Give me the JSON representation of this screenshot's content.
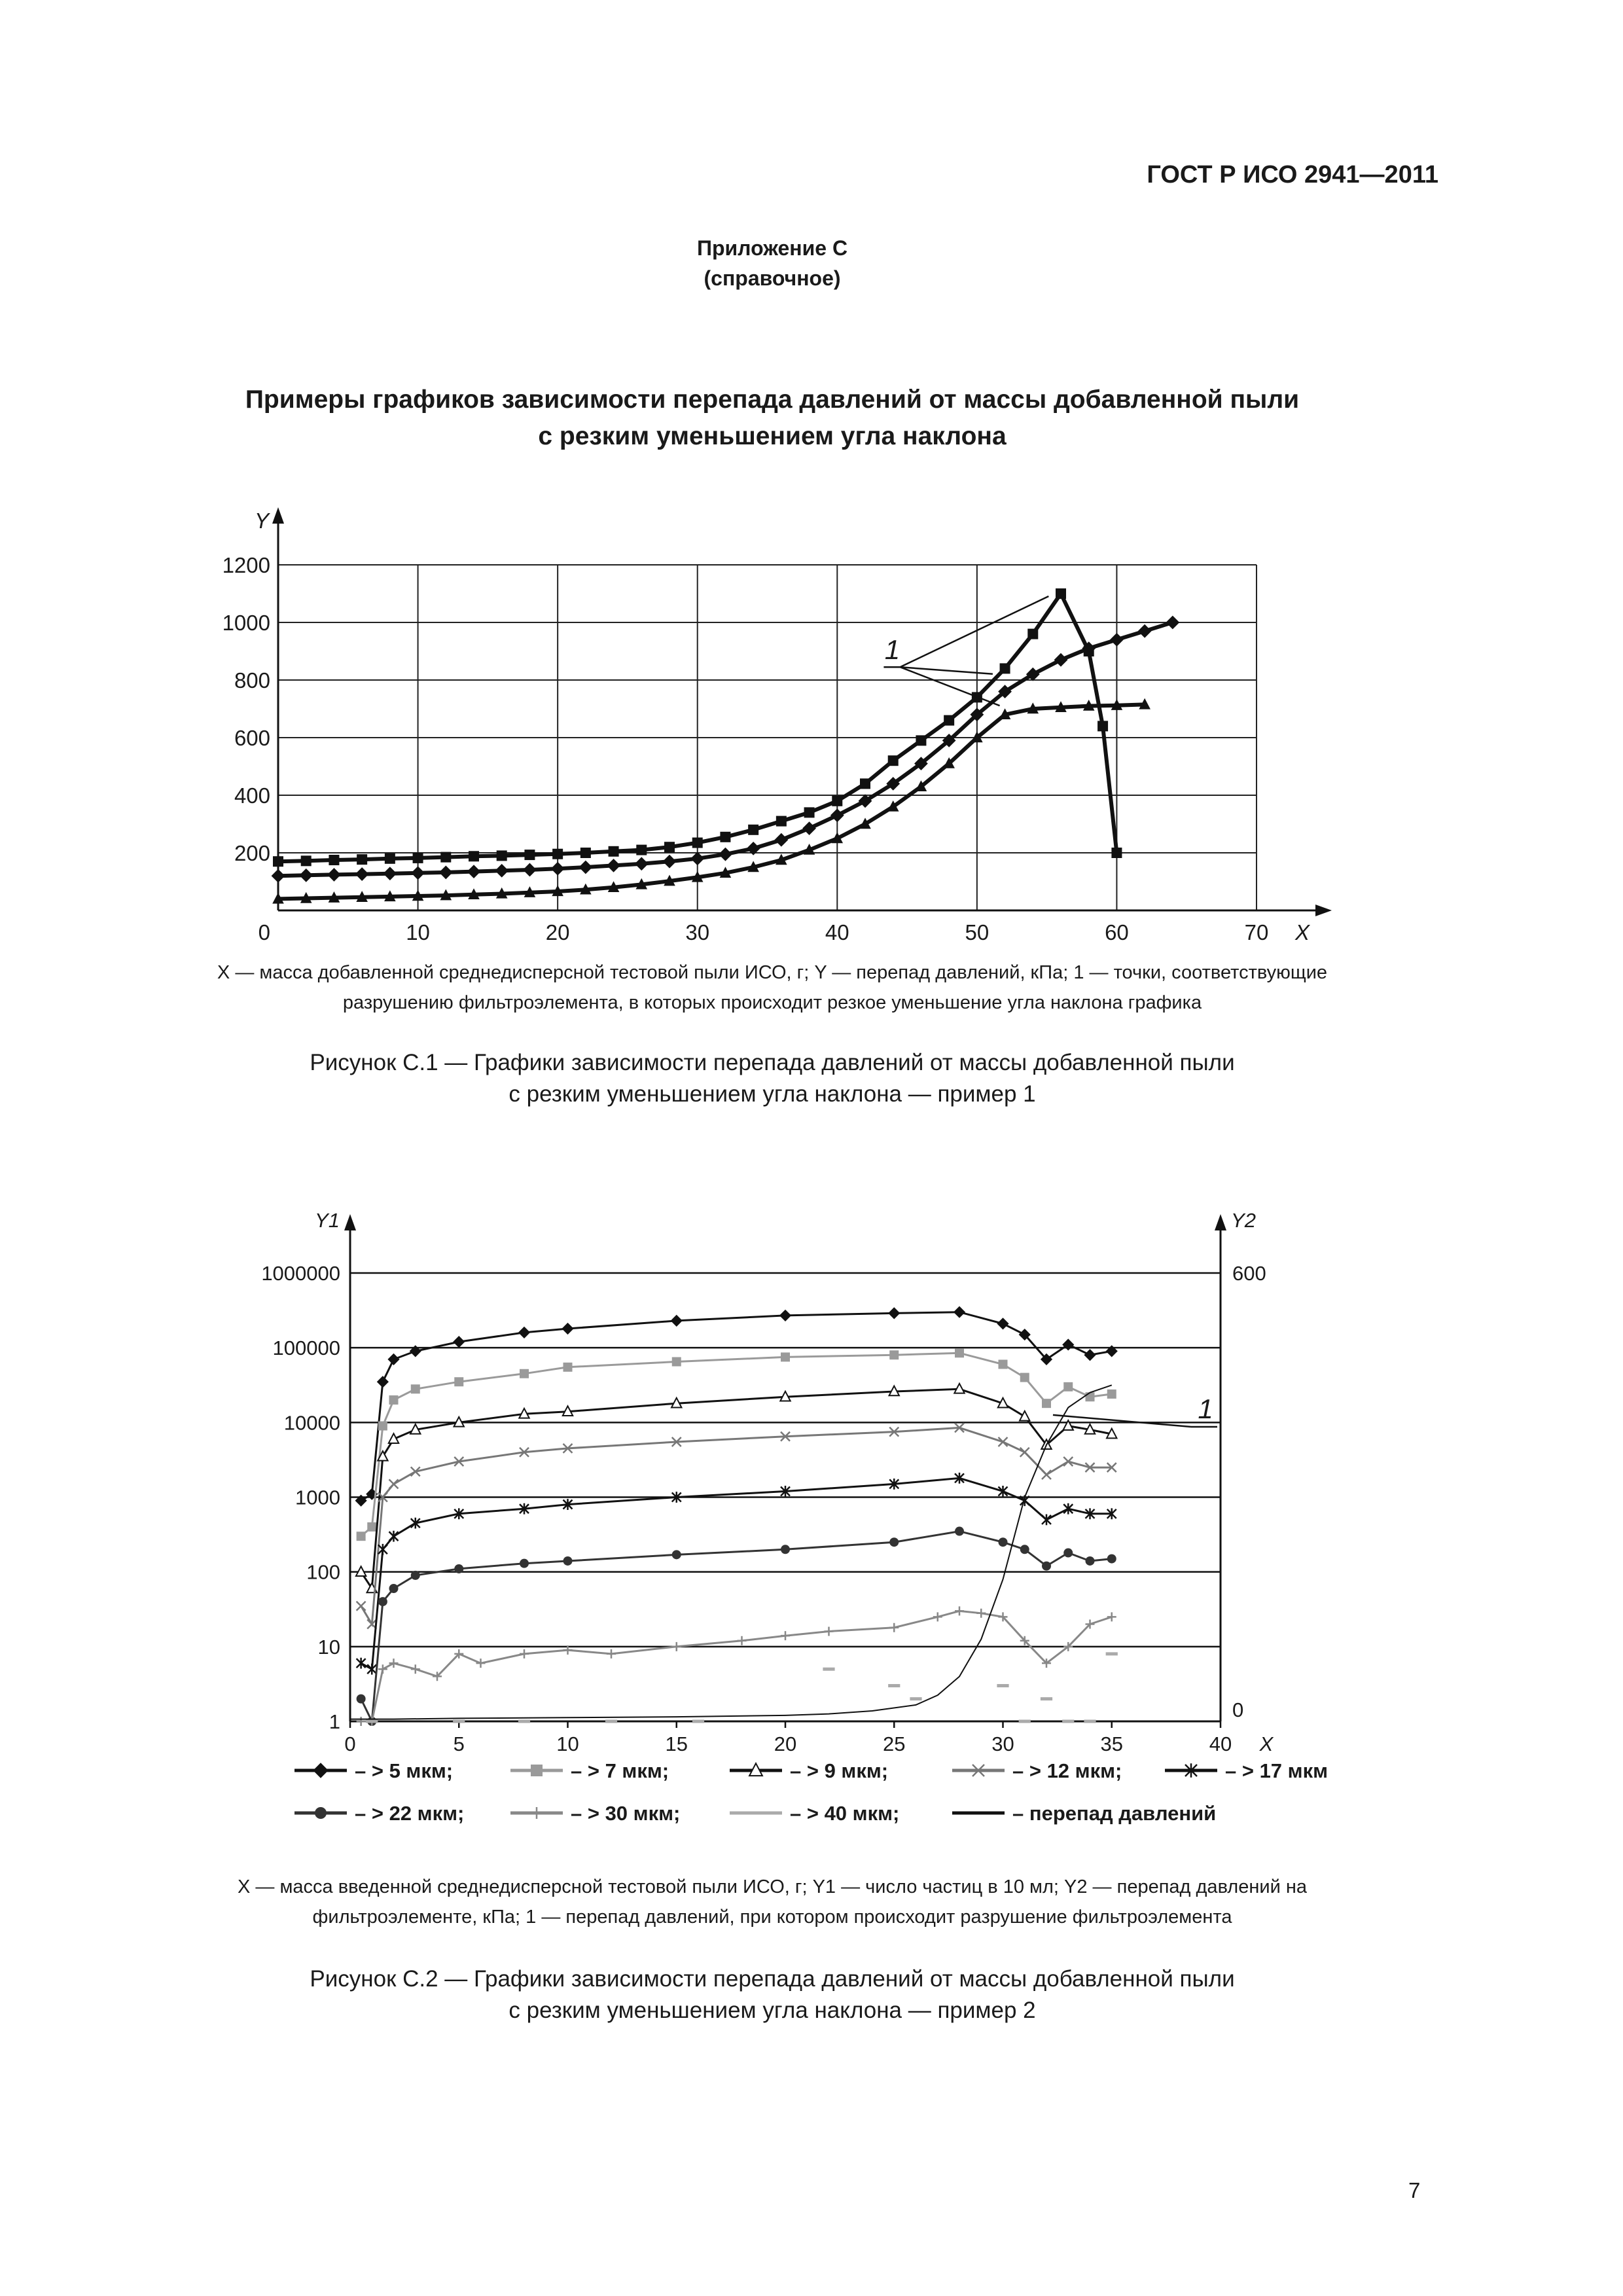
{
  "header": {
    "standard": "ГОСТ Р ИСО 2941—2011"
  },
  "annex": {
    "line1": "Приложение С",
    "line2": "(справочное)"
  },
  "title": {
    "line1": "Примеры графиков зависимости перепада давлений от массы добавленной пыли",
    "line2": "с резким уменьшением угла наклона"
  },
  "figure1": {
    "legend_line1": "X — масса добавленной среднедисперсной тестовой пыли ИСО, г; Y — перепад давлений, кПа; 1 — точки, соответствующие",
    "legend_line2": "разрушению фильтроэлемента, в которых происходит резкое уменьшение угла наклона графика",
    "caption_line1": "Рисунок С.1 — Графики зависимости перепада давлений от массы добавленной пыли",
    "caption_line2": "с резким уменьшением угла наклона — пример 1"
  },
  "figure2": {
    "legend_line1": "X — масса введенной среднедисперсной тестовой пыли ИСО, г; Y1 — число частиц в 10 мл; Y2 — перепад давлений на",
    "legend_line2": "фильтроэлементе, кПа; 1 — перепад давлений, при котором происходит разрушение фильтроэлемента",
    "caption_line1": "Рисунок С.2 — Графики зависимости перепада давлений от массы добавленной пыли",
    "caption_line2": "с резким уменьшением угла наклона — пример 2"
  },
  "page_number": "7",
  "chart_data": [
    {
      "type": "line",
      "xlabel": "X",
      "ylabel": "Y",
      "xlim": [
        0,
        70
      ],
      "ylim": [
        0,
        1200
      ],
      "xticks": [
        "0",
        "10",
        "20",
        "30",
        "40",
        "50",
        "60",
        "70"
      ],
      "yticks": [
        "200",
        "400",
        "600",
        "800",
        "1000",
        "1200"
      ],
      "annotation": "1",
      "grid": true,
      "series": [
        {
          "marker": "square",
          "x": [
            0,
            2,
            4,
            6,
            8,
            10,
            12,
            14,
            16,
            18,
            20,
            22,
            24,
            26,
            28,
            30,
            32,
            34,
            36,
            38,
            40,
            42,
            44,
            46,
            48,
            50,
            52,
            54,
            56,
            58,
            59,
            60
          ],
          "y": [
            170,
            172,
            175,
            177,
            180,
            182,
            185,
            188,
            190,
            193,
            196,
            200,
            205,
            210,
            220,
            235,
            255,
            280,
            310,
            340,
            380,
            440,
            520,
            590,
            660,
            740,
            840,
            960,
            1100,
            900,
            640,
            200
          ]
        },
        {
          "marker": "diamond",
          "x": [
            0,
            2,
            4,
            6,
            8,
            10,
            12,
            14,
            16,
            18,
            20,
            22,
            24,
            26,
            28,
            30,
            32,
            34,
            36,
            38,
            40,
            42,
            44,
            46,
            48,
            50,
            52,
            54,
            56,
            58,
            60,
            62,
            64
          ],
          "y": [
            120,
            122,
            124,
            126,
            128,
            130,
            132,
            135,
            138,
            141,
            145,
            150,
            156,
            162,
            170,
            180,
            195,
            215,
            245,
            285,
            330,
            380,
            440,
            510,
            590,
            680,
            760,
            820,
            870,
            910,
            940,
            970,
            1000
          ]
        },
        {
          "marker": "triangle",
          "x": [
            0,
            2,
            4,
            6,
            8,
            10,
            12,
            14,
            16,
            18,
            20,
            22,
            24,
            26,
            28,
            30,
            32,
            34,
            36,
            38,
            40,
            42,
            44,
            46,
            48,
            50,
            52,
            54,
            56,
            58,
            60,
            62
          ],
          "y": [
            40,
            42,
            44,
            46,
            48,
            50,
            52,
            55,
            58,
            62,
            66,
            72,
            80,
            90,
            102,
            115,
            130,
            150,
            175,
            210,
            250,
            300,
            360,
            430,
            510,
            600,
            680,
            700,
            705,
            710,
            712,
            715
          ]
        }
      ]
    },
    {
      "type": "line",
      "xlabel": "X",
      "ylabel": "Y1",
      "y2label": "Y2",
      "y_scale": "log",
      "xlim": [
        0,
        40
      ],
      "ylim": [
        1,
        1000000
      ],
      "y2lim": [
        0,
        600
      ],
      "xticks": [
        "0",
        "5",
        "10",
        "15",
        "20",
        "25",
        "30",
        "35",
        "40"
      ],
      "yticks": [
        "1",
        "10",
        "100",
        "1000",
        "10000",
        "100000",
        "1000000"
      ],
      "y2ticks": [
        "0",
        "600"
      ],
      "annotation": "1",
      "legend_position": "bottom",
      "series": [
        {
          "name": "– > 5 мкм;",
          "marker": "diamond",
          "color": "#111111",
          "x": [
            0.5,
            1,
            1.5,
            2,
            3,
            5,
            8,
            10,
            15,
            20,
            25,
            28,
            30,
            31,
            32,
            33,
            34,
            35
          ],
          "y": [
            900,
            1100,
            35000,
            70000,
            90000,
            120000,
            160000,
            180000,
            230000,
            270000,
            290000,
            300000,
            210000,
            150000,
            70000,
            110000,
            80000,
            90000
          ]
        },
        {
          "name": "– > 7 мкм;",
          "marker": "square",
          "color": "#9a9a9a",
          "x": [
            0.5,
            1,
            1.5,
            2,
            3,
            5,
            8,
            10,
            15,
            20,
            25,
            28,
            30,
            31,
            32,
            33,
            34,
            35
          ],
          "y": [
            300,
            400,
            9000,
            20000,
            28000,
            35000,
            45000,
            55000,
            65000,
            75000,
            80000,
            85000,
            60000,
            40000,
            18000,
            30000,
            22000,
            24000
          ]
        },
        {
          "name": "– > 9 мкм;",
          "marker": "triangle-open",
          "color": "#111111",
          "x": [
            0.5,
            1,
            1.5,
            2,
            3,
            5,
            8,
            10,
            15,
            20,
            25,
            28,
            30,
            31,
            32,
            33,
            34,
            35
          ],
          "y": [
            100,
            60,
            3500,
            6000,
            8000,
            10000,
            13000,
            14000,
            18000,
            22000,
            26000,
            28000,
            18000,
            12000,
            5000,
            9000,
            8000,
            7000
          ]
        },
        {
          "name": "– > 12 мкм;",
          "marker": "x",
          "color": "#777777",
          "x": [
            0.5,
            1,
            1.5,
            2,
            3,
            5,
            8,
            10,
            15,
            20,
            25,
            28,
            30,
            31,
            32,
            33,
            34,
            35
          ],
          "y": [
            35,
            20,
            1000,
            1500,
            2200,
            3000,
            4000,
            4500,
            5500,
            6500,
            7500,
            8500,
            5500,
            4000,
            2000,
            3000,
            2500,
            2500
          ]
        },
        {
          "name": "– > 17 мкм;",
          "marker": "asterisk",
          "color": "#111111",
          "x": [
            0.5,
            1,
            1.5,
            2,
            3,
            5,
            8,
            10,
            15,
            20,
            25,
            28,
            30,
            31,
            32,
            33,
            34,
            35
          ],
          "y": [
            6,
            5,
            200,
            300,
            450,
            600,
            700,
            800,
            1000,
            1200,
            1500,
            1800,
            1200,
            900,
            500,
            700,
            600,
            600
          ]
        },
        {
          "name": "– > 22 мкм;",
          "marker": "circle",
          "color": "#333333",
          "x": [
            0.5,
            1,
            1.5,
            2,
            3,
            5,
            8,
            10,
            15,
            20,
            25,
            28,
            30,
            31,
            32,
            33,
            34,
            35
          ],
          "y": [
            2,
            1,
            40,
            60,
            90,
            110,
            130,
            140,
            170,
            200,
            250,
            350,
            250,
            200,
            120,
            180,
            140,
            150
          ]
        },
        {
          "name": "– > 30 мкм;",
          "marker": "plus",
          "color": "#888888",
          "x": [
            0.5,
            1,
            1.5,
            2,
            3,
            4,
            5,
            6,
            8,
            10,
            12,
            15,
            18,
            20,
            22,
            25,
            27,
            28,
            29,
            30,
            31,
            32,
            33,
            34,
            35
          ],
          "y": [
            1,
            1,
            5,
            6,
            5,
            4,
            8,
            6,
            8,
            9,
            8,
            10,
            12,
            14,
            16,
            18,
            25,
            30,
            28,
            25,
            12,
            6,
            10,
            20,
            25
          ]
        },
        {
          "name": "– > 40 мкм;",
          "marker": "dash",
          "color": "#aaaaaa",
          "x": [
            1,
            5,
            8,
            12,
            16,
            22,
            25,
            26,
            30,
            31,
            32,
            33,
            34,
            35
          ],
          "y": [
            1,
            1,
            1,
            1,
            1,
            5,
            3,
            2,
            3,
            1,
            2,
            1,
            1,
            8
          ]
        },
        {
          "name": "– перепад давлений",
          "marker": "none",
          "color": "#111111",
          "axis": "y2",
          "x": [
            0,
            2,
            5,
            10,
            15,
            20,
            22,
            24,
            26,
            27,
            28,
            29,
            30,
            31,
            32,
            33,
            34,
            35
          ],
          "y": [
            3,
            3,
            4,
            5,
            6,
            8,
            10,
            14,
            22,
            35,
            60,
            110,
            190,
            300,
            370,
            420,
            440,
            450
          ]
        }
      ]
    }
  ]
}
